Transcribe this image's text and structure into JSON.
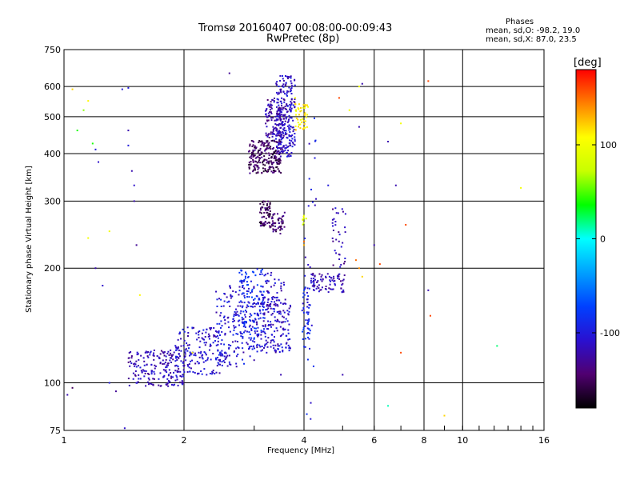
{
  "chart_data": {
    "type": "scatter",
    "title": "Tromsø 20160407 00:08:00-00:09:43",
    "subtitle": "RwPretec (8p)",
    "stats": {
      "title": "Phases",
      "line_o": "mean, sd,O: -98.2, 19.0",
      "line_x": "mean, sd,X:  87.0, 23.5"
    },
    "xlabel": "Frequency [MHz]",
    "ylabel": "Stationary phase Virtual Height [km]",
    "x_scale": "log",
    "y_scale": "log",
    "xlim": [
      1,
      16
    ],
    "ylim": [
      75,
      750
    ],
    "x_ticks": [
      1,
      2,
      4,
      6,
      8,
      10,
      16
    ],
    "y_ticks": [
      75,
      100,
      200,
      300,
      400,
      500,
      600,
      750
    ],
    "grid": true,
    "colorbar": {
      "label": "[deg]",
      "range": [
        -180,
        180
      ],
      "ticks": [
        100,
        0,
        -100
      ],
      "colors": [
        "#000000",
        "#500070",
        "#2a10d0",
        "#0040ff",
        "#00a0ff",
        "#00ffff",
        "#00ff00",
        "#c8ff00",
        "#ffff00",
        "#ff8000",
        "#ff0000"
      ]
    },
    "clusters": [
      {
        "fmin": 1.45,
        "fmax": 2.0,
        "hmin": 98,
        "hmax": 122,
        "phase": -118,
        "n": 190
      },
      {
        "fmin": 1.9,
        "fmax": 2.5,
        "hmin": 105,
        "hmax": 140,
        "phase": -108,
        "n": 170
      },
      {
        "fmin": 2.4,
        "fmax": 3.0,
        "hmin": 110,
        "hmax": 180,
        "phase": -105,
        "n": 180
      },
      {
        "fmin": 2.75,
        "fmax": 3.2,
        "hmin": 130,
        "hmax": 200,
        "phase": -85,
        "n": 130
      },
      {
        "fmin": 3.0,
        "fmax": 3.7,
        "hmin": 120,
        "hmax": 165,
        "phase": -110,
        "n": 170
      },
      {
        "fmin": 3.1,
        "fmax": 3.6,
        "hmin": 160,
        "hmax": 195,
        "phase": -112,
        "n": 60
      },
      {
        "fmin": 3.95,
        "fmax": 4.15,
        "hmin": 130,
        "hmax": 180,
        "phase": -90,
        "n": 45
      },
      {
        "fmin": 4.15,
        "fmax": 5.1,
        "hmin": 172,
        "hmax": 195,
        "phase": -118,
        "n": 80
      },
      {
        "fmin": 4.7,
        "fmax": 5.1,
        "hmin": 200,
        "hmax": 290,
        "phase": -120,
        "n": 35
      },
      {
        "fmin": 3.1,
        "fmax": 3.3,
        "hmin": 255,
        "hmax": 300,
        "phase": -150,
        "n": 70
      },
      {
        "fmin": 3.3,
        "fmax": 3.6,
        "hmin": 245,
        "hmax": 280,
        "phase": -145,
        "n": 50
      },
      {
        "fmin": 2.9,
        "fmax": 3.5,
        "hmin": 355,
        "hmax": 435,
        "phase": -150,
        "n": 230
      },
      {
        "fmin": 3.4,
        "fmax": 3.8,
        "hmin": 390,
        "hmax": 640,
        "phase": -112,
        "n": 240
      },
      {
        "fmin": 3.2,
        "fmax": 3.6,
        "hmin": 440,
        "hmax": 560,
        "phase": -125,
        "n": 120
      },
      {
        "fmin": 3.8,
        "fmax": 4.1,
        "hmin": 460,
        "hmax": 540,
        "phase": 110,
        "n": 50
      },
      {
        "fmin": 3.95,
        "fmax": 4.05,
        "hmin": 260,
        "hmax": 275,
        "phase": 95,
        "n": 8
      },
      {
        "fmin": 4.0,
        "fmax": 4.3,
        "hmin": 80,
        "hmax": 600,
        "phase": -100,
        "n": 30
      }
    ],
    "outliers": [
      [
        1.02,
        93,
        -120
      ],
      [
        1.05,
        97,
        -150
      ],
      [
        1.05,
        590,
        120
      ],
      [
        1.08,
        460,
        40
      ],
      [
        1.12,
        520,
        60
      ],
      [
        1.15,
        550,
        110
      ],
      [
        1.15,
        240,
        100
      ],
      [
        1.2,
        410,
        -100
      ],
      [
        1.22,
        380,
        -110
      ],
      [
        1.25,
        180,
        -110
      ],
      [
        1.3,
        100,
        -100
      ],
      [
        1.35,
        95,
        -130
      ],
      [
        1.4,
        590,
        -100
      ],
      [
        1.45,
        595,
        -100
      ],
      [
        1.45,
        460,
        -120
      ],
      [
        1.45,
        420,
        -100
      ],
      [
        1.48,
        360,
        -120
      ],
      [
        1.5,
        330,
        -110
      ],
      [
        1.5,
        300,
        -120
      ],
      [
        1.52,
        230,
        -130
      ],
      [
        1.55,
        170,
        110
      ],
      [
        1.42,
        76,
        -110
      ],
      [
        1.2,
        200,
        -120
      ],
      [
        1.18,
        425,
        40
      ],
      [
        1.3,
        250,
        100
      ],
      [
        2.6,
        650,
        -130
      ],
      [
        5.6,
        610,
        -120
      ],
      [
        5.5,
        600,
        100
      ],
      [
        6.0,
        230,
        -120
      ],
      [
        6.5,
        430,
        -120
      ],
      [
        6.8,
        330,
        -120
      ],
      [
        6.5,
        87,
        10
      ],
      [
        7.0,
        120,
        160
      ],
      [
        7.2,
        260,
        160
      ],
      [
        8.2,
        620,
        160
      ],
      [
        8.2,
        175,
        -120
      ],
      [
        8.3,
        150,
        160
      ],
      [
        9.0,
        82,
        120
      ],
      [
        12.2,
        125,
        20
      ],
      [
        14.0,
        325,
        100
      ],
      [
        4.9,
        560,
        160
      ],
      [
        5.2,
        520,
        100
      ],
      [
        5.4,
        210,
        150
      ],
      [
        5.5,
        200,
        140
      ],
      [
        5.5,
        470,
        -120
      ],
      [
        6.2,
        205,
        160
      ],
      [
        5.6,
        190,
        120
      ],
      [
        7.0,
        480,
        100
      ],
      [
        5.0,
        105,
        -120
      ],
      [
        3.5,
        105,
        -120
      ],
      [
        4.6,
        330,
        -100
      ],
      [
        2.1,
        120,
        110
      ],
      [
        4.0,
        230,
        130
      ],
      [
        4.0,
        235,
        150
      ],
      [
        3.8,
        560,
        100
      ],
      [
        3.7,
        420,
        -120
      ]
    ]
  }
}
